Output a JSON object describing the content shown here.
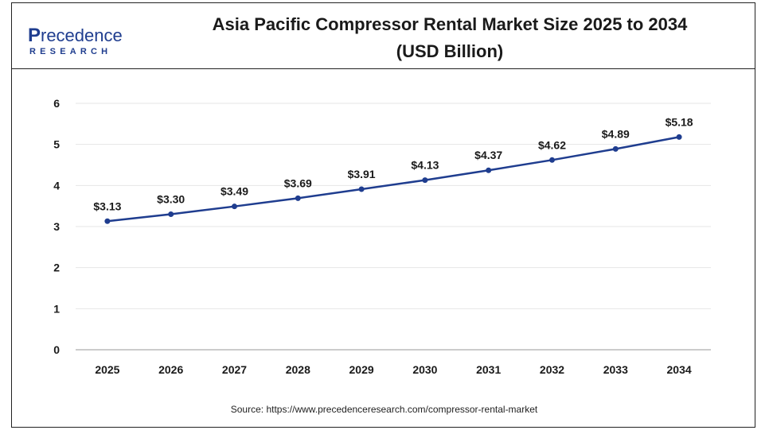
{
  "header": {
    "title_line1": "Asia Pacific Compressor Rental Market Size 2025 to 2034",
    "title_line2": "(USD Billion)",
    "logo_main": "recedence",
    "logo_initial": "P",
    "logo_sub": "RESEARCH"
  },
  "footer": {
    "source": "Source: https://www.precedenceresearch.com/compressor-rental-market"
  },
  "colors": {
    "line": "#1f3d8f",
    "point": "#1f3d8f",
    "grid": "#e6e6e6",
    "axis": "#999999",
    "logo_blue": "#1f3d8f"
  },
  "chart_data": {
    "type": "line",
    "title": "Asia Pacific Compressor Rental Market Size 2025 to 2034 (USD Billion)",
    "categories": [
      "2025",
      "2026",
      "2027",
      "2028",
      "2029",
      "2030",
      "2031",
      "2032",
      "2033",
      "2034"
    ],
    "series": [
      {
        "values": [
          3.13,
          3.3,
          3.49,
          3.69,
          3.91,
          4.13,
          4.37,
          4.62,
          4.89,
          5.18
        ],
        "labels": [
          "$3.13",
          "$3.30",
          "$3.49",
          "$3.69",
          "$3.91",
          "$4.13",
          "$4.37",
          "$4.62",
          "$4.89",
          "$5.18"
        ]
      }
    ],
    "ylim": [
      0,
      6
    ],
    "yticks": [
      "0",
      "1",
      "2",
      "3",
      "4",
      "5",
      "6"
    ],
    "xlabel": "",
    "ylabel": "",
    "grid": true,
    "legend": "none"
  }
}
